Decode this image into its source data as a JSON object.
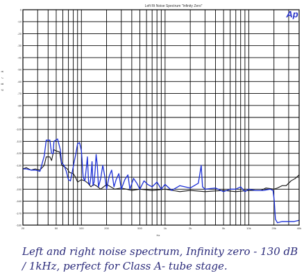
{
  "chart_data": {
    "type": "line",
    "title": "Left Rt Noise Spectrum \"Infinity Zero\"",
    "xlabel": "Hz",
    "ylabel": "d B r  A",
    "xscale": "log",
    "xlim": [
      20,
      40000
    ],
    "ylim": [
      -180,
      0
    ],
    "grid": true,
    "x_tick_labels": [
      {
        "value": 20,
        "label": "20"
      },
      {
        "value": 50,
        "label": "50"
      },
      {
        "value": 100,
        "label": "100"
      },
      {
        "value": 200,
        "label": "200"
      },
      {
        "value": 500,
        "label": "500"
      },
      {
        "value": 1000,
        "label": "1k"
      },
      {
        "value": 2000,
        "label": "2k"
      },
      {
        "value": 5000,
        "label": "5k"
      },
      {
        "value": 10000,
        "label": "10k"
      },
      {
        "value": 20000,
        "label": "20k"
      },
      {
        "value": 40000,
        "label": "40k"
      }
    ],
    "y_ticks": [
      0,
      -10,
      -20,
      -30,
      -40,
      -50,
      -60,
      -70,
      -80,
      -90,
      -100,
      -110,
      -120,
      -130,
      -140,
      -150,
      -160,
      -170,
      -180
    ],
    "series": [
      {
        "color": "#111111",
        "points": [
          [
            20,
            -133
          ],
          [
            22,
            -132
          ],
          [
            25,
            -134
          ],
          [
            28,
            -133
          ],
          [
            32,
            -134
          ],
          [
            36,
            -130
          ],
          [
            38,
            -123
          ],
          [
            42,
            -123
          ],
          [
            44,
            -126
          ],
          [
            47,
            -117
          ],
          [
            50,
            -118
          ],
          [
            55,
            -119
          ],
          [
            58,
            -130
          ],
          [
            62,
            -131
          ],
          [
            68,
            -133
          ],
          [
            72,
            -136
          ],
          [
            80,
            -137
          ],
          [
            85,
            -140
          ],
          [
            90,
            -144
          ],
          [
            95,
            -143
          ],
          [
            100,
            -142
          ],
          [
            110,
            -143
          ],
          [
            120,
            -145
          ],
          [
            130,
            -148
          ],
          [
            140,
            -146
          ],
          [
            150,
            -147
          ],
          [
            170,
            -150
          ],
          [
            200,
            -146
          ],
          [
            250,
            -150
          ],
          [
            300,
            -149
          ],
          [
            400,
            -151
          ],
          [
            500,
            -150
          ],
          [
            700,
            -151
          ],
          [
            1000,
            -150
          ],
          [
            1500,
            -152
          ],
          [
            2000,
            -151
          ],
          [
            3000,
            -152
          ],
          [
            5000,
            -151
          ],
          [
            7000,
            -152
          ],
          [
            10000,
            -151
          ],
          [
            14000,
            -151
          ],
          [
            16000,
            -149
          ],
          [
            20000,
            -150
          ],
          [
            22000,
            -149
          ],
          [
            25000,
            -147
          ],
          [
            28000,
            -147
          ],
          [
            32000,
            -143
          ],
          [
            36000,
            -141
          ],
          [
            40000,
            -138
          ]
        ]
      },
      {
        "color": "#1a2ed6",
        "points": [
          [
            20,
            -133
          ],
          [
            22,
            -133
          ],
          [
            25,
            -134
          ],
          [
            28,
            -134
          ],
          [
            32,
            -135
          ],
          [
            36,
            -122
          ],
          [
            38,
            -109
          ],
          [
            42,
            -109
          ],
          [
            44,
            -120
          ],
          [
            46,
            -120
          ],
          [
            47,
            -110
          ],
          [
            52,
            -108
          ],
          [
            56,
            -117
          ],
          [
            58,
            -128
          ],
          [
            62,
            -130
          ],
          [
            66,
            -135
          ],
          [
            70,
            -142
          ],
          [
            74,
            -143
          ],
          [
            78,
            -135
          ],
          [
            82,
            -127
          ],
          [
            86,
            -120
          ],
          [
            90,
            -112
          ],
          [
            95,
            -111
          ],
          [
            100,
            -118
          ],
          [
            105,
            -140
          ],
          [
            110,
            -143
          ],
          [
            115,
            -131
          ],
          [
            118,
            -123
          ],
          [
            122,
            -145
          ],
          [
            126,
            -146
          ],
          [
            130,
            -140
          ],
          [
            134,
            -127
          ],
          [
            138,
            -147
          ],
          [
            142,
            -144
          ],
          [
            146,
            -134
          ],
          [
            150,
            -121
          ],
          [
            155,
            -130
          ],
          [
            160,
            -148
          ],
          [
            170,
            -141
          ],
          [
            180,
            -130
          ],
          [
            190,
            -139
          ],
          [
            200,
            -150
          ],
          [
            215,
            -139
          ],
          [
            230,
            -134
          ],
          [
            245,
            -148
          ],
          [
            260,
            -142
          ],
          [
            280,
            -137
          ],
          [
            300,
            -150
          ],
          [
            330,
            -142
          ],
          [
            360,
            -138
          ],
          [
            380,
            -150
          ],
          [
            420,
            -141
          ],
          [
            460,
            -145
          ],
          [
            500,
            -150
          ],
          [
            560,
            -143
          ],
          [
            620,
            -146
          ],
          [
            700,
            -148
          ],
          [
            800,
            -144
          ],
          [
            900,
            -150
          ],
          [
            1000,
            -146
          ],
          [
            1200,
            -151
          ],
          [
            1500,
            -147
          ],
          [
            2000,
            -149
          ],
          [
            2500,
            -145
          ],
          [
            2700,
            -130
          ],
          [
            2800,
            -148
          ],
          [
            3000,
            -150
          ],
          [
            4000,
            -149
          ],
          [
            5000,
            -152
          ],
          [
            6000,
            -150
          ],
          [
            7000,
            -150
          ],
          [
            8000,
            -148
          ],
          [
            9000,
            -152
          ],
          [
            10000,
            -150
          ],
          [
            12000,
            -151
          ],
          [
            15000,
            -151
          ],
          [
            18000,
            -150
          ],
          [
            19500,
            -151
          ],
          [
            20200,
            -160
          ],
          [
            20800,
            -175
          ],
          [
            22000,
            -178
          ],
          [
            25000,
            -177
          ],
          [
            30000,
            -177
          ],
          [
            35000,
            -177
          ],
          [
            40000,
            -176
          ]
        ]
      }
    ]
  },
  "header": {
    "title": "Left Rt Noise Spectrum \"Infinity Zero\"",
    "logo": "Ap"
  },
  "axes": {
    "y_label": "d B r  A",
    "x_label": "Hz"
  },
  "caption": "Left and right noise spectrum, Infinity zero - 130 dB / 1kHz,  perfect for Class A- tube stage."
}
